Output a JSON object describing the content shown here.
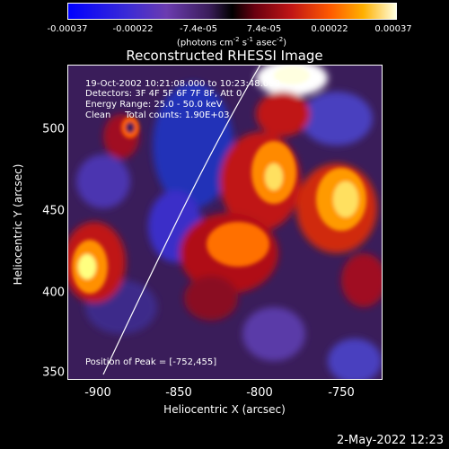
{
  "colorbar": {
    "ticks": [
      "-0.00037",
      "-0.00022",
      "-7.4e-05",
      "7.4e-05",
      "0.00022",
      "0.00037"
    ],
    "units_prefix": "(photons cm",
    "units_exp1": "-2",
    "units_mid": " s",
    "units_exp2": "-1",
    "units_mid2": " asec",
    "units_exp3": "-2",
    "units_suffix": ")"
  },
  "title": "Reconstructed RHESSI Image",
  "annotations": {
    "time": "19-Oct-2002 10:21:08.000 to 10:23:48.000",
    "detectors": "Detectors: 3F 4F 5F 6F 7F 8F, Att 0",
    "energy": "Energy Range: 25.0 - 50.0 keV",
    "clean": "Clean     Total counts: 1.90E+03",
    "peak": "Position of Peak = [-752,455]"
  },
  "axes": {
    "xlabel": "Heliocentric X (arcsec)",
    "ylabel": "Heliocentric Y (arcsec)",
    "xticks": [
      "-900",
      "-850",
      "-800",
      "-750"
    ],
    "yticks": [
      "500",
      "450",
      "400",
      "350"
    ]
  },
  "timestamp": "2-May-2022 12:23",
  "colors": {
    "positive_high": "#ffffe0",
    "positive_mid": "#ff8000",
    "background": "#3a1d5a",
    "negative": "#2b2bd6"
  }
}
